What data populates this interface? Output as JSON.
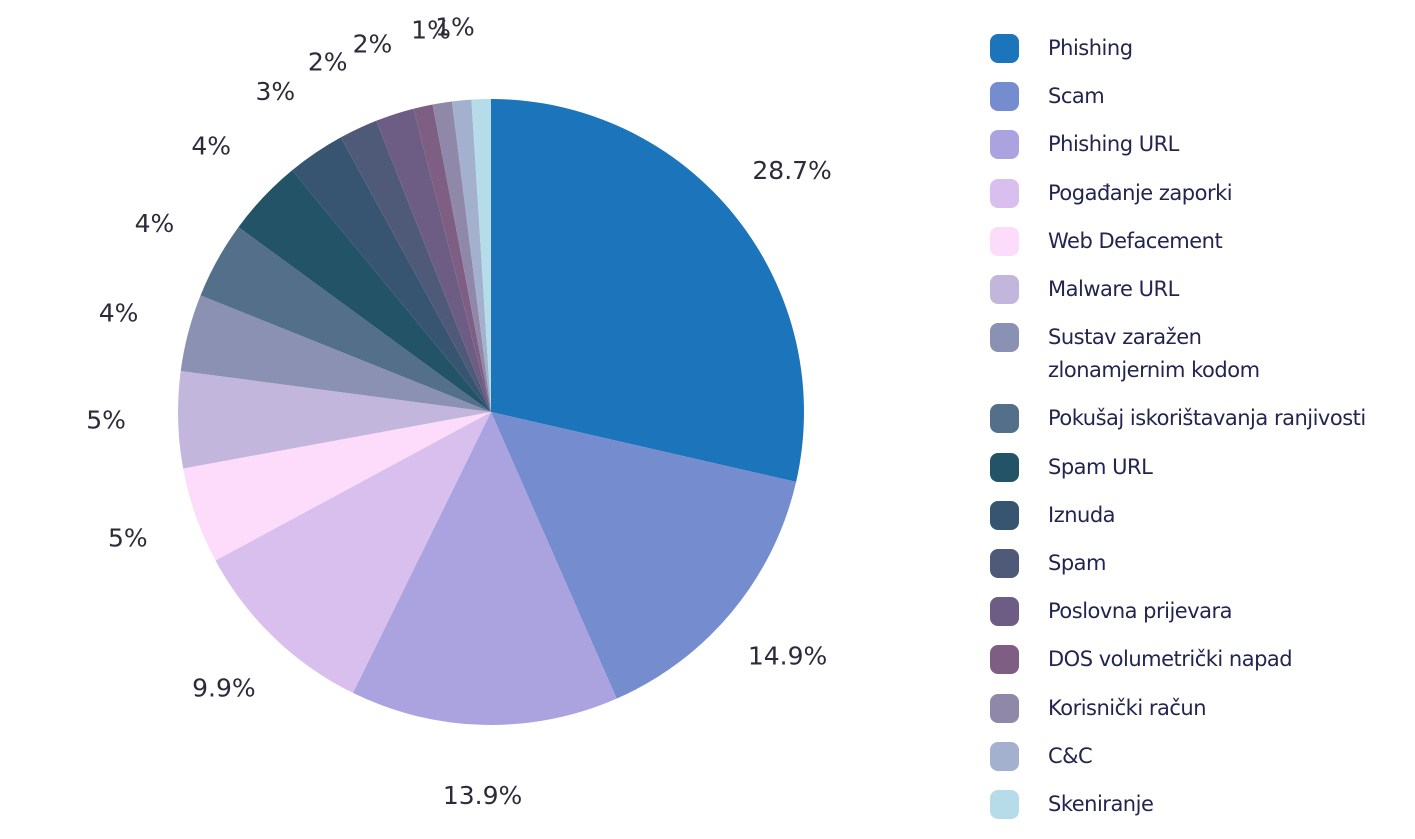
{
  "chart_data": {
    "type": "pie",
    "start_angle_deg": 0,
    "direction": "clockwise",
    "slices": [
      {
        "name": "Phishing",
        "value": 28.7,
        "label": "28.7%",
        "color": "#1c75bb"
      },
      {
        "name": "Scam",
        "value": 14.9,
        "label": "14.9%",
        "color": "#758cce"
      },
      {
        "name": "Phishing URL",
        "value": 13.9,
        "label": "13.9%",
        "color": "#aba3df"
      },
      {
        "name": "Pogađanje zaporki",
        "value": 9.9,
        "label": "9.9%",
        "color": "#d9bfed"
      },
      {
        "name": "Web Defacement",
        "value": 5,
        "label": "5%",
        "color": "#fddcfb"
      },
      {
        "name": "Malware URL",
        "value": 5,
        "label": "5%",
        "color": "#c3b6dc"
      },
      {
        "name": "Sustav zaražen\nzlonamjernim kodom",
        "value": 4,
        "label": "4%",
        "color": "#8b91b3"
      },
      {
        "name": "Pokušaj iskorištavanja ranjivosti",
        "value": 4,
        "label": "4%",
        "color": "#536f8a"
      },
      {
        "name": "Spam URL",
        "value": 4,
        "label": "4%",
        "color": "#235367"
      },
      {
        "name": "Iznuda",
        "value": 3,
        "label": "3%",
        "color": "#375470"
      },
      {
        "name": "Spam",
        "value": 2,
        "label": "2%",
        "color": "#4f5a79"
      },
      {
        "name": "Poslovna prijevara",
        "value": 2,
        "label": "2%",
        "color": "#6d5d84"
      },
      {
        "name": "DOS volumetrički napad",
        "value": 1,
        "label": "",
        "color": "#7e5f83"
      },
      {
        "name": "Korisnički račun",
        "value": 1,
        "label": "1%",
        "color": "#8f88a9"
      },
      {
        "name": "C&C",
        "value": 1,
        "label": "1%",
        "color": "#a3b1cf"
      },
      {
        "name": "Skeniranje",
        "value": 1,
        "label": "",
        "color": "#b6dcea"
      }
    ],
    "legend_position": "right"
  }
}
